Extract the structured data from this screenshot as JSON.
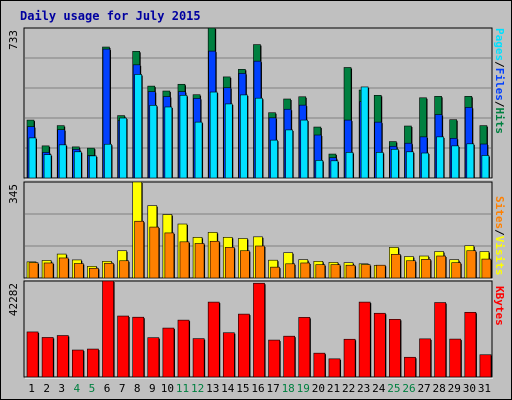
{
  "colors": {
    "background": "#c0c0c0",
    "plot": "#c0c0c0",
    "title": "#0000a0",
    "hits": "#008040",
    "files": "#0040ff",
    "pages": "#00e0ff",
    "visits": "#ffff00",
    "sites": "#ff8000",
    "kbytes": "#ff0000",
    "weekend_label": "#008040",
    "weekday_label": "#000000",
    "gridline": "#808080"
  },
  "chart_data": [
    {
      "type": "bar",
      "title": "Daily usage for July 2015",
      "ymax_label": "733",
      "ylim": [
        0,
        733
      ],
      "grid": true,
      "legend": [
        {
          "text": "Pages",
          "color_key": "pages"
        },
        {
          "text": "/",
          "color_key": "weekday_label"
        },
        {
          "text": "Files",
          "color_key": "files"
        },
        {
          "text": "/",
          "color_key": "weekday_label"
        },
        {
          "text": "Hits",
          "color_key": "hits"
        }
      ],
      "categories": [
        "1",
        "2",
        "3",
        "4",
        "5",
        "6",
        "7",
        "8",
        "9",
        "10",
        "11",
        "12",
        "13",
        "14",
        "15",
        "16",
        "17",
        "18",
        "19",
        "20",
        "21",
        "22",
        "23",
        "24",
        "25",
        "26",
        "27",
        "28",
        "29",
        "30",
        "31"
      ],
      "weekend_days": [
        4,
        5,
        11,
        12,
        18,
        19,
        25,
        26
      ],
      "series": [
        {
          "name": "Hits",
          "color_key": "hits",
          "values": [
            283,
            157,
            256,
            152,
            146,
            640,
            305,
            619,
            449,
            425,
            458,
            407,
            733,
            494,
            531,
            652,
            319,
            386,
            397,
            249,
            117,
            540,
            430,
            404,
            178,
            254,
            392,
            399,
            285,
            399,
            256
          ]
        },
        {
          "name": "Files",
          "color_key": "files",
          "values": [
            251,
            125,
            236,
            140,
            110,
            630,
            280,
            553,
            422,
            398,
            422,
            389,
            620,
            441,
            511,
            571,
            294,
            336,
            356,
            210,
            99,
            283,
            373,
            273,
            155,
            170,
            201,
            310,
            194,
            345,
            166
          ]
        },
        {
          "name": "Pages",
          "color_key": "pages",
          "values": [
            196,
            114,
            162,
            128,
            108,
            165,
            293,
            506,
            355,
            347,
            404,
            273,
            420,
            362,
            406,
            390,
            185,
            235,
            283,
            86,
            84,
            125,
            445,
            125,
            140,
            128,
            122,
            201,
            157,
            167,
            110
          ]
        }
      ]
    },
    {
      "type": "bar",
      "ymax_label": "345",
      "ylim": [
        0,
        345
      ],
      "grid": true,
      "legend": [
        {
          "text": "Sites",
          "color_key": "sites"
        },
        {
          "text": "/",
          "color_key": "weekday_label"
        },
        {
          "text": "Visits",
          "color_key": "visits"
        }
      ],
      "categories": [
        "1",
        "2",
        "3",
        "4",
        "5",
        "6",
        "7",
        "8",
        "9",
        "10",
        "11",
        "12",
        "13",
        "14",
        "15",
        "16",
        "17",
        "18",
        "19",
        "20",
        "21",
        "22",
        "23",
        "24",
        "25",
        "26",
        "27",
        "28",
        "29",
        "30",
        "31"
      ],
      "series": [
        {
          "name": "Visits",
          "color_key": "visits",
          "values": [
            58,
            63,
            86,
            65,
            42,
            60,
            98,
            345,
            260,
            228,
            194,
            146,
            164,
            146,
            142,
            148,
            64,
            91,
            66,
            60,
            56,
            55,
            51,
            45,
            110,
            77,
            79,
            95,
            66,
            116,
            95
          ]
        },
        {
          "name": "Sites",
          "color_key": "sites",
          "values": [
            55,
            54,
            72,
            52,
            35,
            53,
            62,
            204,
            183,
            162,
            130,
            124,
            132,
            110,
            98,
            115,
            39,
            51,
            54,
            48,
            48,
            46,
            48,
            46,
            85,
            62,
            67,
            79,
            55,
            98,
            68
          ]
        }
      ]
    },
    {
      "type": "bar",
      "ymax_label": "42282",
      "ylim": [
        0,
        42282
      ],
      "grid": false,
      "legend": [
        {
          "text": "KBytes",
          "color_key": "kbytes"
        }
      ],
      "categories": [
        "1",
        "2",
        "3",
        "4",
        "5",
        "6",
        "7",
        "8",
        "9",
        "10",
        "11",
        "12",
        "13",
        "14",
        "15",
        "16",
        "17",
        "18",
        "19",
        "20",
        "21",
        "22",
        "23",
        "24",
        "25",
        "26",
        "27",
        "28",
        "29",
        "30",
        "31"
      ],
      "series": [
        {
          "name": "KBytes",
          "color_key": "kbytes",
          "values": [
            19850,
            17420,
            18270,
            11880,
            12310,
            42282,
            26850,
            26340,
            17320,
            21550,
            25050,
            16910,
            32990,
            19500,
            27700,
            41300,
            16260,
            17980,
            26260,
            10500,
            8000,
            16630,
            32990,
            28080,
            25400,
            8700,
            16800,
            32800,
            16700,
            28500,
            9800
          ]
        }
      ]
    }
  ]
}
